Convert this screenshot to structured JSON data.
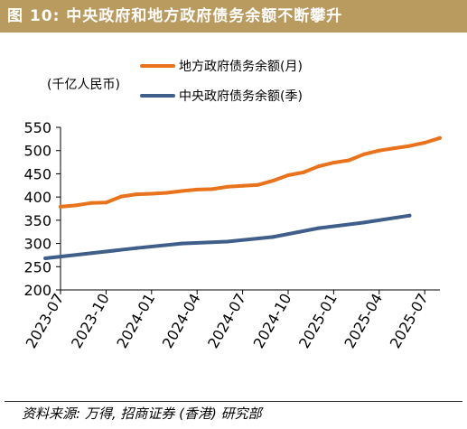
{
  "header": {
    "figure_label": "图 10:",
    "title": "中央政府和地方政府债务余额不断攀升"
  },
  "chart_data": {
    "type": "line",
    "unit_label": "(千亿人民币)",
    "ylim": [
      200,
      550
    ],
    "yticks": [
      "200",
      "250",
      "300",
      "350",
      "400",
      "450",
      "500",
      "550"
    ],
    "xlim": [
      "2023-07",
      "2025-08"
    ],
    "xticks": [
      "2023-07",
      "2023-10",
      "2024-01",
      "2024-04",
      "2024-07",
      "2024-10",
      "2025-01",
      "2025-04",
      "2025-07"
    ],
    "grid": false,
    "legend_position": "top",
    "series": [
      {
        "name": "地方政府债务余额(月)",
        "color": "#e8731c",
        "points": [
          [
            "2023-07",
            379
          ],
          [
            "2023-08",
            382
          ],
          [
            "2023-09",
            387
          ],
          [
            "2023-10",
            388
          ],
          [
            "2023-11",
            401
          ],
          [
            "2023-12",
            406
          ],
          [
            "2024-01",
            407
          ],
          [
            "2024-02",
            409
          ],
          [
            "2024-03",
            413
          ],
          [
            "2024-04",
            416
          ],
          [
            "2024-05",
            417
          ],
          [
            "2024-06",
            422
          ],
          [
            "2024-07",
            424
          ],
          [
            "2024-08",
            426
          ],
          [
            "2024-09",
            435
          ],
          [
            "2024-10",
            447
          ],
          [
            "2024-11",
            453
          ],
          [
            "2024-12",
            466
          ],
          [
            "2025-01",
            474
          ],
          [
            "2025-02",
            479
          ],
          [
            "2025-03",
            492
          ],
          [
            "2025-04",
            500
          ],
          [
            "2025-05",
            505
          ],
          [
            "2025-06",
            510
          ],
          [
            "2025-07",
            517
          ],
          [
            "2025-08",
            527
          ]
        ]
      },
      {
        "name": "中央政府债务余额(季)",
        "color": "#3f5f8a",
        "points": [
          [
            "2023-06",
            268
          ],
          [
            "2023-09",
            279
          ],
          [
            "2023-12",
            290
          ],
          [
            "2024-03",
            300
          ],
          [
            "2024-06",
            304
          ],
          [
            "2024-09",
            314
          ],
          [
            "2024-12",
            333
          ],
          [
            "2025-03",
            345
          ],
          [
            "2025-06",
            360
          ]
        ]
      }
    ]
  },
  "footer": {
    "source": "资料来源: 万得, 招商证券 (香港) 研究部"
  }
}
